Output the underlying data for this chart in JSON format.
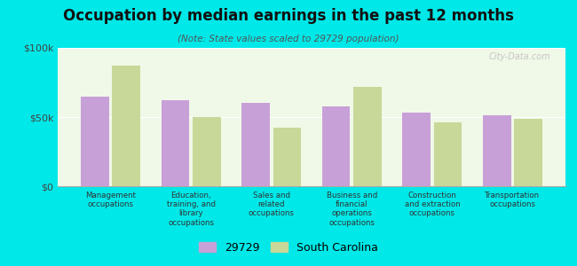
{
  "title": "Occupation by median earnings in the past 12 months",
  "subtitle": "(Note: State values scaled to 29729 population)",
  "categories": [
    "Management\noccupations",
    "Education,\ntraining, and\nlibrary\noccupations",
    "Sales and\nrelated\noccupations",
    "Business and\nfinancial\noperations\noccupations",
    "Construction\nand extraction\noccupations",
    "Transportation\noccupations"
  ],
  "values_29729": [
    65000,
    62000,
    60000,
    58000,
    53000,
    51000
  ],
  "values_sc": [
    87000,
    50000,
    42000,
    72000,
    46000,
    49000
  ],
  "color_29729": "#c8a0d8",
  "color_sc": "#c8d898",
  "background_plot": "#f0f8e8",
  "background_fig": "#00e8e8",
  "ylim": [
    0,
    100000
  ],
  "yticks": [
    0,
    50000,
    100000
  ],
  "ytick_labels": [
    "$0",
    "$50k",
    "$100k"
  ],
  "legend_label_1": "29729",
  "legend_label_2": "South Carolina",
  "watermark": "City-Data.com"
}
